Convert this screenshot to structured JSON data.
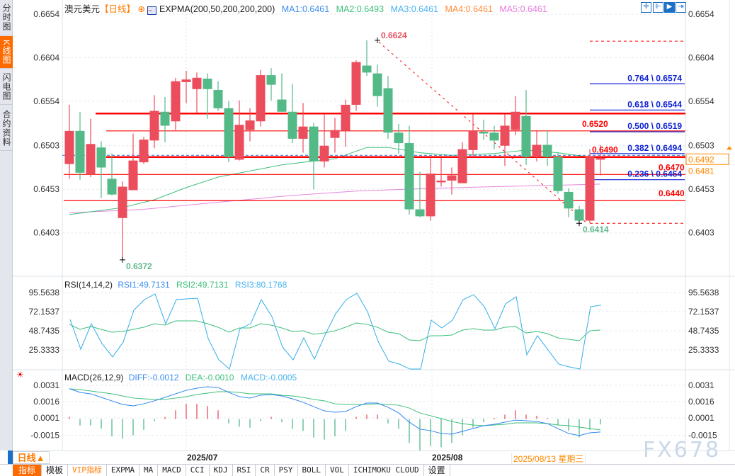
{
  "sidebar": {
    "tabs": [
      {
        "label": "分时图",
        "active": false
      },
      {
        "label": "K线图",
        "active": true
      },
      {
        "label": "闪电图",
        "active": false
      },
      {
        "label": "合约资料",
        "active": false
      }
    ]
  },
  "header": {
    "symbol": "澳元美元",
    "period": "【日线】",
    "indicator": "EXPMA(200,50,200,200,200)",
    "ma": [
      {
        "label": "MA1:0.6461",
        "color": "#3d8ef0"
      },
      {
        "label": "MA2:0.6493",
        "color": "#3cbf7a"
      },
      {
        "label": "MA3:0.6461",
        "color": "#4ab4f0"
      },
      {
        "label": "MA4:0.6461",
        "color": "#ff8c3a"
      },
      {
        "label": "MA5:0.6461",
        "color": "#e77ddc"
      }
    ]
  },
  "top_icons": [
    "crosshair-icon",
    "zoom-range-icon",
    "play-icon",
    "exit-icon"
  ],
  "price_axis": {
    "ticks": [
      "0.6654",
      "0.6604",
      "0.6554",
      "0.6503",
      "0.6453",
      "0.6403"
    ],
    "current": "0.6492",
    "secondary": "0.6481"
  },
  "rsi": {
    "title": "RSI(14,14,2)",
    "rsi1": "RSI1:49.7131",
    "rsi2": "RSI2:49.7131",
    "rsi3": "RSI3:80.1768",
    "ticks": [
      "95.5638",
      "72.1537",
      "48.7435",
      "25.3333"
    ]
  },
  "macd": {
    "title": "MACD(26,12,9)",
    "diff": "DIFF:-0.0012",
    "dea": "DEA:-0.0010",
    "macd": "MACD:-0.0005",
    "ticks": [
      "0.0031",
      "0.0016",
      "0.0001",
      "-0.0015"
    ]
  },
  "dates": {
    "period_button": "日线▲",
    "labels": [
      "2025/07",
      "2025/08"
    ],
    "crosshair": "2025/08/13 星期三"
  },
  "toolbar": [
    "指标",
    "模板",
    "VIP指标",
    "EXPMA",
    "MA",
    "MACD",
    "CCI",
    "KDJ",
    "RSI",
    "CR",
    "PSY",
    "BOLL",
    "VOL",
    "ICHIMOKU CLOUD",
    "设置"
  ],
  "watermark": "FX678",
  "colors": {
    "up": "#eb4d5c",
    "down": "#52b987",
    "ema_green": "#3cbf7a",
    "ema_pink": "#e488dc",
    "fib": "#0a1fd6",
    "level": "#ff0000",
    "current": "#ff8a00"
  },
  "chart_data": {
    "type": "candlestick",
    "ylim": [
      0.6372,
      0.6654
    ],
    "candles": [
      [
        0.6482,
        0.655,
        0.6465,
        0.652
      ],
      [
        0.652,
        0.6542,
        0.6464,
        0.6472
      ],
      [
        0.647,
        0.6534,
        0.6467,
        0.6505
      ],
      [
        0.6501,
        0.6508,
        0.6443,
        0.6478
      ],
      [
        0.6465,
        0.6494,
        0.6446,
        0.6447
      ],
      [
        0.642,
        0.6462,
        0.6372,
        0.6456
      ],
      [
        0.6452,
        0.6517,
        0.6452,
        0.6486
      ],
      [
        0.6484,
        0.6513,
        0.6482,
        0.651
      ],
      [
        0.6509,
        0.6561,
        0.65,
        0.6543
      ],
      [
        0.6542,
        0.6559,
        0.6507,
        0.6526
      ],
      [
        0.6531,
        0.6581,
        0.6521,
        0.6577
      ],
      [
        0.6576,
        0.6589,
        0.6552,
        0.6579
      ],
      [
        0.6568,
        0.6587,
        0.6541,
        0.6581
      ],
      [
        0.658,
        0.6586,
        0.6534,
        0.6568
      ],
      [
        0.6567,
        0.6577,
        0.6543,
        0.6546
      ],
      [
        0.6546,
        0.6554,
        0.6484,
        0.649
      ],
      [
        0.6487,
        0.6555,
        0.6486,
        0.6527
      ],
      [
        0.6521,
        0.6546,
        0.6508,
        0.6532
      ],
      [
        0.6531,
        0.659,
        0.6525,
        0.6584
      ],
      [
        0.6584,
        0.6592,
        0.6555,
        0.6573
      ],
      [
        0.6556,
        0.6586,
        0.6542,
        0.6542
      ],
      [
        0.6542,
        0.6574,
        0.6506,
        0.6511
      ],
      [
        0.6511,
        0.6552,
        0.6495,
        0.6525
      ],
      [
        0.6525,
        0.6529,
        0.6453,
        0.6485
      ],
      [
        0.6485,
        0.6539,
        0.6478,
        0.6503
      ],
      [
        0.6512,
        0.6535,
        0.6495,
        0.6521
      ],
      [
        0.652,
        0.6556,
        0.6502,
        0.655
      ],
      [
        0.655,
        0.6601,
        0.6543,
        0.6599
      ],
      [
        0.6595,
        0.6624,
        0.6583,
        0.6587
      ],
      [
        0.6586,
        0.6596,
        0.6548,
        0.656
      ],
      [
        0.6569,
        0.6583,
        0.6511,
        0.6518
      ],
      [
        0.6518,
        0.6528,
        0.6494,
        0.6506
      ],
      [
        0.6506,
        0.6526,
        0.6424,
        0.643
      ],
      [
        0.643,
        0.6473,
        0.6421,
        0.6422
      ],
      [
        0.6422,
        0.6489,
        0.6417,
        0.6471
      ],
      [
        0.6461,
        0.6489,
        0.6456,
        0.6463
      ],
      [
        0.6463,
        0.6478,
        0.6447,
        0.6469
      ],
      [
        0.646,
        0.6507,
        0.646,
        0.6499
      ],
      [
        0.6498,
        0.6539,
        0.649,
        0.652
      ],
      [
        0.6519,
        0.6533,
        0.651,
        0.6517
      ],
      [
        0.6518,
        0.6526,
        0.6499,
        0.6509
      ],
      [
        0.6503,
        0.6539,
        0.648,
        0.6526
      ],
      [
        0.6521,
        0.656,
        0.6515,
        0.6542
      ],
      [
        0.6537,
        0.6567,
        0.6481,
        0.649
      ],
      [
        0.649,
        0.6521,
        0.6485,
        0.6504
      ],
      [
        0.6504,
        0.6521,
        0.648,
        0.649
      ],
      [
        0.649,
        0.6495,
        0.6448,
        0.6451
      ],
      [
        0.645,
        0.6454,
        0.6421,
        0.6431
      ],
      [
        0.643,
        0.6434,
        0.6414,
        0.6417
      ],
      [
        0.6417,
        0.6499,
        0.6414,
        0.649
      ],
      [
        0.6487,
        0.6504,
        0.6469,
        0.6489
      ]
    ],
    "ema_green": [
      [
        0,
        0.6424
      ],
      [
        5,
        0.6432
      ],
      [
        8,
        0.6441
      ],
      [
        11,
        0.6455
      ],
      [
        14,
        0.6467
      ],
      [
        17,
        0.6474
      ],
      [
        20,
        0.6481
      ],
      [
        22,
        0.6484
      ],
      [
        25,
        0.6488
      ],
      [
        28,
        0.6501
      ],
      [
        30,
        0.6501
      ],
      [
        33,
        0.6495
      ],
      [
        36,
        0.6492
      ],
      [
        40,
        0.6494
      ],
      [
        43,
        0.6498
      ],
      [
        46,
        0.6495
      ],
      [
        49,
        0.649
      ],
      [
        50,
        0.649
      ]
    ],
    "ema_pink": [
      [
        0,
        0.6426
      ],
      [
        7,
        0.643
      ],
      [
        13,
        0.6437
      ],
      [
        21,
        0.6446
      ],
      [
        27,
        0.6451
      ],
      [
        34,
        0.6454
      ],
      [
        40,
        0.6456
      ],
      [
        47,
        0.6458
      ],
      [
        50,
        0.6459
      ]
    ],
    "levels": [
      {
        "price": 0.654,
        "thick": true,
        "from": 3
      },
      {
        "price": 0.652,
        "thick": false,
        "from": 4,
        "label": "0.6520"
      },
      {
        "price": 0.649,
        "thick": true,
        "from": 4,
        "label": "0.6490"
      },
      {
        "price": 0.647,
        "thick": false,
        "from": 0,
        "label": "0.6470"
      },
      {
        "price": 0.644,
        "thick": false,
        "from": 0,
        "label": "0.6440"
      }
    ],
    "dashed_levels": [
      0.6623,
      0.6414
    ],
    "current_price": 0.6492,
    "fib": [
      {
        "label": "0.764 \\ 0.6574",
        "price": 0.6574
      },
      {
        "label": "0.618 \\ 0.6544",
        "price": 0.6544
      },
      {
        "label": "0.500 \\ 0.6519",
        "price": 0.6519
      },
      {
        "label": "0.382 \\ 0.6494",
        "price": 0.6494
      },
      {
        "label": "0.236 \\ 0.6464",
        "price": 0.6464
      }
    ],
    "extremes": [
      {
        "label": "0.6624",
        "index": 29,
        "price": 0.6624,
        "type": "high"
      },
      {
        "label": "0.6372",
        "index": 5,
        "price": 0.6372,
        "type": "low"
      },
      {
        "label": "0.6414",
        "index": 48,
        "price": 0.6414,
        "type": "low"
      }
    ],
    "rsi1": [
      62.6,
      26.2,
      57.4,
      33.1,
      16.7,
      34.9,
      73.9,
      86.9,
      93.8,
      57.4,
      86.9,
      87.8,
      88.6,
      39.2,
      13.2,
      1.9,
      51.3,
      57.4,
      86.9,
      66.1,
      28.8,
      13.2,
      40.1,
      14.1,
      43.5,
      69.6,
      86.9,
      94.7,
      72.2,
      35.7,
      11.5,
      8.0,
      1.9,
      1.9,
      61.7,
      52.2,
      61.7,
      86.9,
      93.0,
      78.2,
      51.3,
      81.7,
      90.4,
      19.3,
      42.7,
      25.3,
      8.0,
      4.5,
      1.9,
      78.2,
      80.2
    ],
    "rsi2": [
      56.6,
      50.5,
      54.0,
      50.5,
      47.0,
      47.9,
      50.5,
      53.1,
      57.4,
      55.7,
      60.9,
      60.9,
      60.9,
      57.4,
      53.1,
      47.0,
      52.2,
      52.2,
      57.4,
      55.7,
      52.2,
      47.9,
      48.7,
      44.4,
      46.1,
      48.7,
      53.1,
      58.3,
      56.6,
      53.1,
      47.0,
      45.3,
      37.5,
      36.6,
      42.7,
      42.7,
      43.5,
      49.6,
      51.3,
      49.6,
      49.6,
      53.1,
      54.0,
      46.1,
      47.9,
      45.3,
      40.1,
      38.3,
      36.6,
      48.7,
      49.7
    ],
    "rsi_ylim": [
      0,
      100
    ],
    "diff": [
      0.0028,
      0.00245,
      0.00232,
      0.00199,
      0.00167,
      0.00134,
      0.00121,
      0.0014,
      0.00167,
      0.00199,
      0.00232,
      0.00264,
      0.00284,
      0.00297,
      0.0029,
      0.00245,
      0.00206,
      0.00193,
      0.00219,
      0.00225,
      0.00212,
      0.00186,
      0.00154,
      0.00114,
      0.00075,
      0.00062,
      0.00069,
      0.00114,
      0.00147,
      0.00147,
      0.00108,
      0.00056,
      -0.00029,
      -0.00094,
      -0.00107,
      -0.00133,
      -0.0014,
      -0.00114,
      -0.00088,
      -0.00062,
      -0.00049,
      -0.00029,
      -0.0001,
      -0.00016,
      -0.00023,
      -0.00042,
      -0.00088,
      -0.00133,
      -0.00153,
      -0.00127,
      -0.0012
    ],
    "dea": [
      0.00277,
      0.00271,
      0.00258,
      0.00245,
      0.00232,
      0.00212,
      0.00193,
      0.00186,
      0.0018,
      0.0018,
      0.00193,
      0.00206,
      0.00225,
      0.00238,
      0.00251,
      0.00251,
      0.00245,
      0.00232,
      0.00232,
      0.00232,
      0.00219,
      0.00212,
      0.00199,
      0.0018,
      0.00167,
      0.0014,
      0.00134,
      0.00134,
      0.00134,
      0.0014,
      0.00134,
      0.00127,
      0.00101,
      0.00056,
      0.0003,
      4e-05,
      -0.00023,
      -0.00042,
      -0.00055,
      -0.00062,
      -0.00055,
      -0.00049,
      -0.00036,
      -0.00036,
      -0.00036,
      -0.00042,
      -0.00055,
      -0.00062,
      -0.00075,
      -0.00088,
      -0.001
    ],
    "macd_hist": [
      0.0002,
      -0.0006,
      -0.0006,
      -0.0009,
      -0.0016,
      -0.0018,
      -0.0015,
      -0.001,
      -0.0002,
      0.0002,
      0.0008,
      0.0014,
      0.0014,
      0.0012,
      0.0008,
      -0.0004,
      -0.0007,
      -0.0008,
      -0.0002,
      0.0002,
      -0.0003,
      -0.0009,
      -0.0011,
      -0.0017,
      -0.0019,
      -0.0016,
      -0.0011,
      0.0002,
      0.0004,
      0.0004,
      -0.0004,
      -0.0009,
      -0.0022,
      -0.0029,
      -0.0025,
      -0.0026,
      -0.0022,
      -0.0015,
      -0.0008,
      -0.0003,
      0.0001,
      0.0004,
      0.0008,
      0.0004,
      0.0003,
      0.0001,
      -0.0006,
      -0.0011,
      -0.0017,
      -0.001,
      -0.0005
    ]
  }
}
